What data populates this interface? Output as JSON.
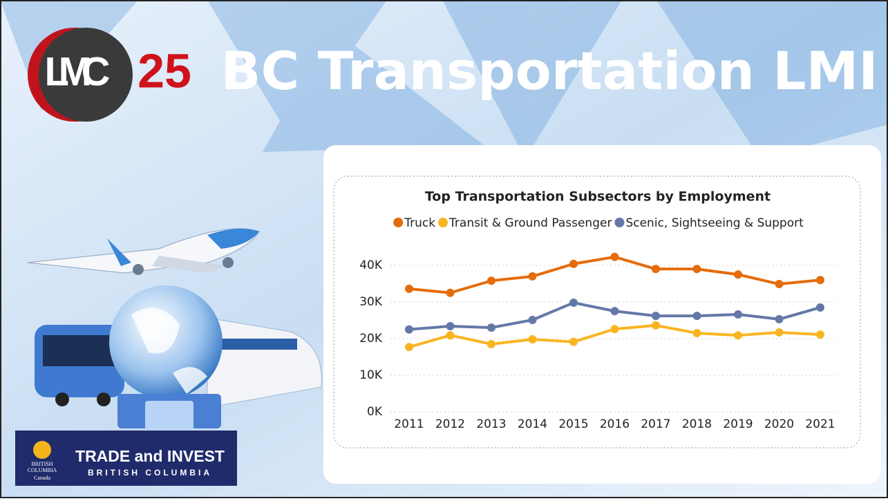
{
  "slide": {
    "title": "BC Transportation LMI",
    "logo": {
      "letters": "LMC",
      "number": "25"
    },
    "sponsor": {
      "line1": "TRADE and INVEST",
      "line2": "BRITISH COLUMBIA",
      "crest1": "BRITISH",
      "crest2": "COLUMBIA",
      "crest3": "Canada"
    }
  },
  "chart_data": {
    "type": "line",
    "title": "Top Transportation Subsectors by Employment",
    "categories": [
      "2011",
      "2012",
      "2013",
      "2014",
      "2015",
      "2016",
      "2017",
      "2018",
      "2019",
      "2020",
      "2021"
    ],
    "series": [
      {
        "name": "Truck",
        "color": "#e46c0a",
        "values": [
          33600,
          32500,
          35800,
          37000,
          40400,
          42300,
          39000,
          39000,
          37500,
          34900,
          36000
        ]
      },
      {
        "name": "Transit & Ground Passenger",
        "color": "#f9b521",
        "values": [
          17700,
          20900,
          18500,
          19800,
          19100,
          22600,
          23600,
          21500,
          20900,
          21700,
          21100
        ]
      },
      {
        "name": "Scenic, Sightseeing & Support",
        "color": "#6478a8",
        "values": [
          22500,
          23400,
          23000,
          25100,
          29800,
          27500,
          26200,
          26200,
          26600,
          25300,
          28500
        ]
      }
    ],
    "ylim": [
      0,
      40000
    ],
    "yticks": [
      {
        "value": 0,
        "label": "0K"
      },
      {
        "value": 10000,
        "label": "10K"
      },
      {
        "value": 20000,
        "label": "20K"
      },
      {
        "value": 30000,
        "label": "30K"
      },
      {
        "value": 40000,
        "label": "40K"
      }
    ],
    "grid": true,
    "legend": "top"
  }
}
